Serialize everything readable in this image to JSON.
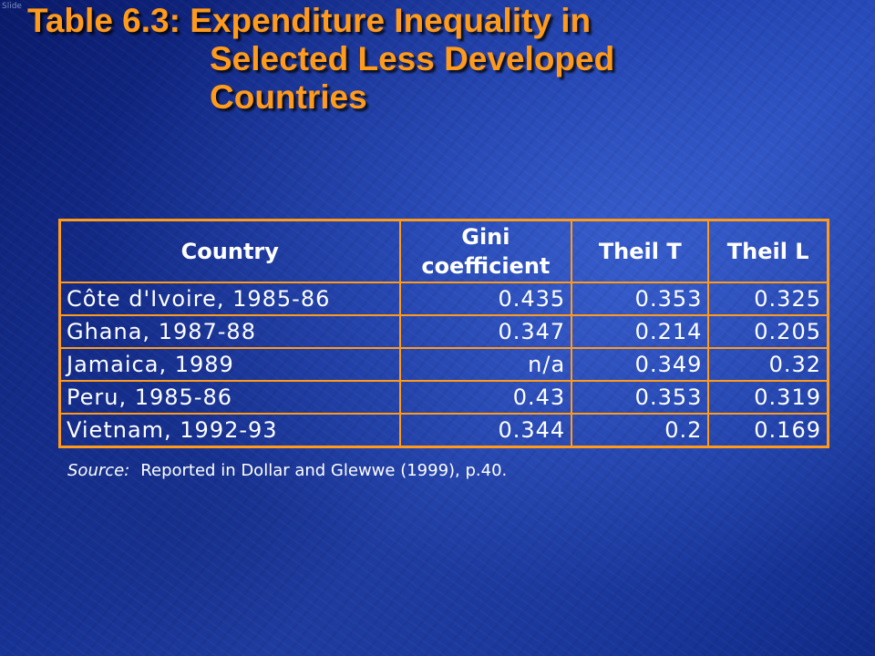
{
  "corner_mark": "Slide",
  "title": {
    "line1": "Table 6.3: Expenditure Inequality in",
    "line2": "Selected Less Developed",
    "line3": "Countries"
  },
  "table": {
    "headers": {
      "country": "Country",
      "gini_line1": "Gini",
      "gini_line2": "coefficient",
      "theil_t": "Theil T",
      "theil_l": "Theil L"
    },
    "rows": [
      {
        "country": "Côte d'Ivoire, 1985-86",
        "gini": "0.435",
        "theil_t": "0.353",
        "theil_l": "0.325"
      },
      {
        "country": "Ghana, 1987-88",
        "gini": "0.347",
        "theil_t": "0.214",
        "theil_l": "0.205"
      },
      {
        "country": "Jamaica, 1989",
        "gini": "n/a",
        "theil_t": "0.349",
        "theil_l": "0.32"
      },
      {
        "country": "Peru, 1985-86",
        "gini": "0.43",
        "theil_t": "0.353",
        "theil_l": "0.319"
      },
      {
        "country": "Vietnam, 1992-93",
        "gini": "0.344",
        "theil_t": "0.2",
        "theil_l": "0.169"
      }
    ]
  },
  "source": {
    "label": "Source:",
    "text": "Reported in Dollar and Glewwe (1999), p.40."
  },
  "colors": {
    "accent": "#ff9a1a",
    "background": "#1a3aa8",
    "text": "#ffffff"
  }
}
